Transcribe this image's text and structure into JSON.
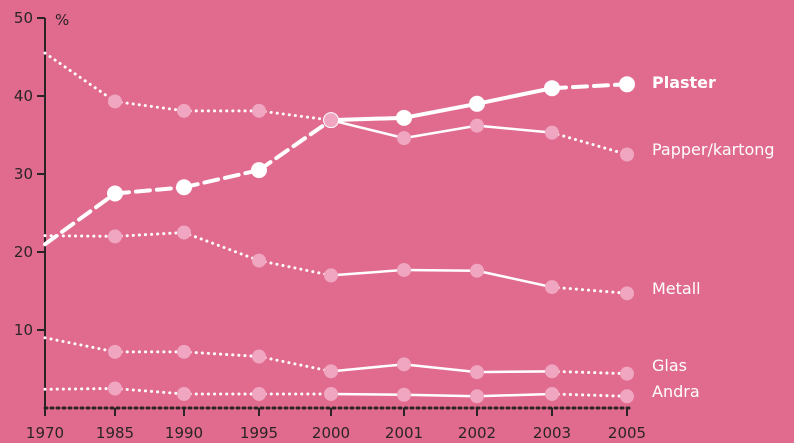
{
  "chart_data": {
    "type": "line",
    "ylabel": "%",
    "ylim": [
      0,
      50
    ],
    "yticks": [
      "10",
      "20",
      "30",
      "40",
      "50"
    ],
    "categories": [
      "1970",
      "1985",
      "1990",
      "1995",
      "2000",
      "2001",
      "2002",
      "2003",
      "2005"
    ],
    "series": [
      {
        "name": "Plaster",
        "emphasis": true,
        "values": [
          21,
          27.5,
          28.3,
          30.5,
          36.9,
          37.2,
          39,
          41,
          41.5
        ]
      },
      {
        "name": "Papper/kartong",
        "values": [
          45.5,
          39.3,
          38.1,
          38.1,
          36.9,
          34.6,
          36.2,
          35.3,
          32.5
        ]
      },
      {
        "name": "Metall",
        "values": [
          22.1,
          22,
          22.5,
          18.9,
          17,
          17.7,
          17.6,
          15.5,
          14.7
        ]
      },
      {
        "name": "Glas",
        "values": [
          9,
          7.2,
          7.2,
          6.6,
          4.7,
          5.6,
          4.6,
          4.7,
          4.4
        ]
      },
      {
        "name": "Andra",
        "values": [
          2.4,
          2.5,
          1.8,
          1.8,
          1.8,
          1.7,
          1.5,
          1.8,
          1.5
        ]
      }
    ],
    "line_styles": {
      "note": "segments 1970-2000 and 2003-2005 are interpolated (dotted/dashed); 2000-2003 annual (solid)"
    },
    "colors": {
      "background": "#e06b8f",
      "line": "#ffffff",
      "marker": "#f0a6c0",
      "axis": "#2b2426"
    }
  }
}
